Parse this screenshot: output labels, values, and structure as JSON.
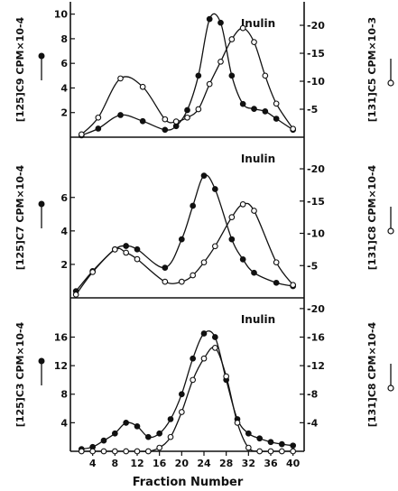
{
  "figure": {
    "x_axis_title": "Fraction Number"
  },
  "chart_data": [
    {
      "type": "line",
      "panel": "top",
      "annotation": "Inulin",
      "left_axis_label": "[125]C9 CPM×10-4",
      "right_axis_label": "[131]C5 CPM×10-3",
      "left_ticks": [
        "2",
        "4",
        "6",
        "8",
        "10"
      ],
      "right_ticks": [
        "5",
        "10",
        "15",
        "20"
      ],
      "x": [
        2,
        5,
        9,
        13,
        17,
        19,
        21,
        23,
        25,
        27,
        29,
        31,
        33,
        35,
        37,
        40
      ],
      "series": [
        {
          "marker": "filled",
          "values": [
            0.15,
            0.7,
            1.8,
            1.3,
            0.6,
            0.9,
            2.2,
            5.0,
            9.6,
            9.3,
            5.0,
            2.7,
            2.3,
            2.1,
            1.5,
            0.6
          ]
        },
        {
          "marker": "open",
          "right_values": [
            0.5,
            3.5,
            10.5,
            9.0,
            3.2,
            2.8,
            3.5,
            5.0,
            9.5,
            13.5,
            17.5,
            19.5,
            17.0,
            11.0,
            6.0,
            1.5
          ]
        }
      ],
      "left_ylim": [
        0,
        11
      ],
      "right_ylim": [
        0,
        24.2
      ],
      "xlim": [
        0,
        42
      ]
    },
    {
      "type": "line",
      "panel": "middle",
      "annotation": "Inulin",
      "left_axis_label": "[125]C7 CPM×10-4",
      "right_axis_label": "[131]C8 CPM×10-4",
      "left_ticks": [
        "2",
        "4",
        "6"
      ],
      "right_ticks": [
        "5",
        "10",
        "15",
        "20"
      ],
      "x": [
        1,
        4,
        8,
        10,
        12,
        17,
        20,
        22,
        24,
        26,
        29,
        31,
        33,
        37,
        40
      ],
      "series": [
        {
          "marker": "filled",
          "values": [
            0.4,
            1.6,
            2.9,
            3.1,
            2.9,
            1.8,
            3.5,
            5.5,
            7.3,
            6.5,
            3.5,
            2.3,
            1.5,
            0.9,
            0.7
          ]
        },
        {
          "marker": "open",
          "right_values": [
            0.5,
            4.0,
            7.5,
            7.0,
            6.0,
            2.5,
            2.5,
            3.5,
            5.5,
            8.0,
            12.5,
            14.5,
            13.5,
            5.5,
            2.0
          ]
        }
      ],
      "left_ylim": [
        0,
        9.6
      ],
      "right_ylim": [
        0,
        24.9
      ],
      "xlim": [
        0,
        42
      ]
    },
    {
      "type": "line",
      "panel": "bottom",
      "annotation": "Inulin",
      "left_axis_label": "[125]C3 CPM×10-4",
      "right_axis_label": "[131]C8 CPM×10-4",
      "left_ticks": [
        "4",
        "8",
        "12",
        "16"
      ],
      "right_ticks": [
        "4",
        "8",
        "12",
        "16",
        "20"
      ],
      "x": [
        2,
        4,
        6,
        8,
        10,
        12,
        14,
        16,
        18,
        20,
        22,
        24,
        26,
        28,
        30,
        32,
        34,
        36,
        38,
        40
      ],
      "series": [
        {
          "marker": "filled",
          "values": [
            0.3,
            0.6,
            1.5,
            2.5,
            4.0,
            3.5,
            2.0,
            2.5,
            4.5,
            8.0,
            13.0,
            16.5,
            16.0,
            10.0,
            4.5,
            2.5,
            1.8,
            1.3,
            1.0,
            0.8
          ]
        },
        {
          "marker": "open",
          "right_values": [
            0,
            0,
            0,
            0,
            0,
            0,
            0,
            0.5,
            2.0,
            5.5,
            10.0,
            13.0,
            14.5,
            10.5,
            4.0,
            0.5,
            0,
            0,
            0,
            0
          ]
        }
      ],
      "left_ylim": [
        0,
        21.5
      ],
      "right_ylim": [
        0,
        21.5
      ],
      "xlim": [
        0,
        42
      ],
      "x_ticks": [
        "4",
        "8",
        "12",
        "16",
        "20",
        "24",
        "28",
        "32",
        "36",
        "40"
      ]
    }
  ]
}
